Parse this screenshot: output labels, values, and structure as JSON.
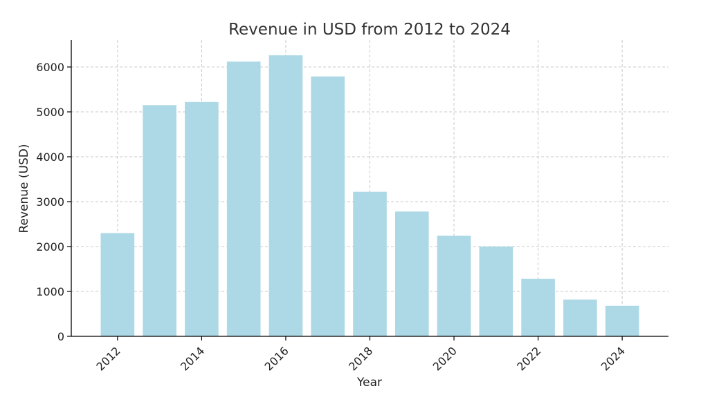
{
  "chart_data": {
    "type": "bar",
    "title": "Revenue in USD from 2012 to 2024",
    "xlabel": "Year",
    "ylabel": "Revenue (USD)",
    "categories": [
      2012,
      2013,
      2014,
      2015,
      2016,
      2017,
      2018,
      2019,
      2020,
      2021,
      2022,
      2023,
      2024
    ],
    "values": [
      2300,
      5150,
      5220,
      6120,
      6260,
      5790,
      3220,
      2780,
      2240,
      2000,
      1280,
      820,
      680
    ],
    "x_ticks": [
      "2012",
      "2014",
      "2016",
      "2018",
      "2020",
      "2022",
      "2024"
    ],
    "y_ticks": [
      "0",
      "1000",
      "2000",
      "3000",
      "4000",
      "5000",
      "6000"
    ],
    "ylim": [
      0,
      6600
    ],
    "xlim": [
      2010.9,
      2025.1
    ],
    "grid": true,
    "bar_color": "#add8e6"
  }
}
